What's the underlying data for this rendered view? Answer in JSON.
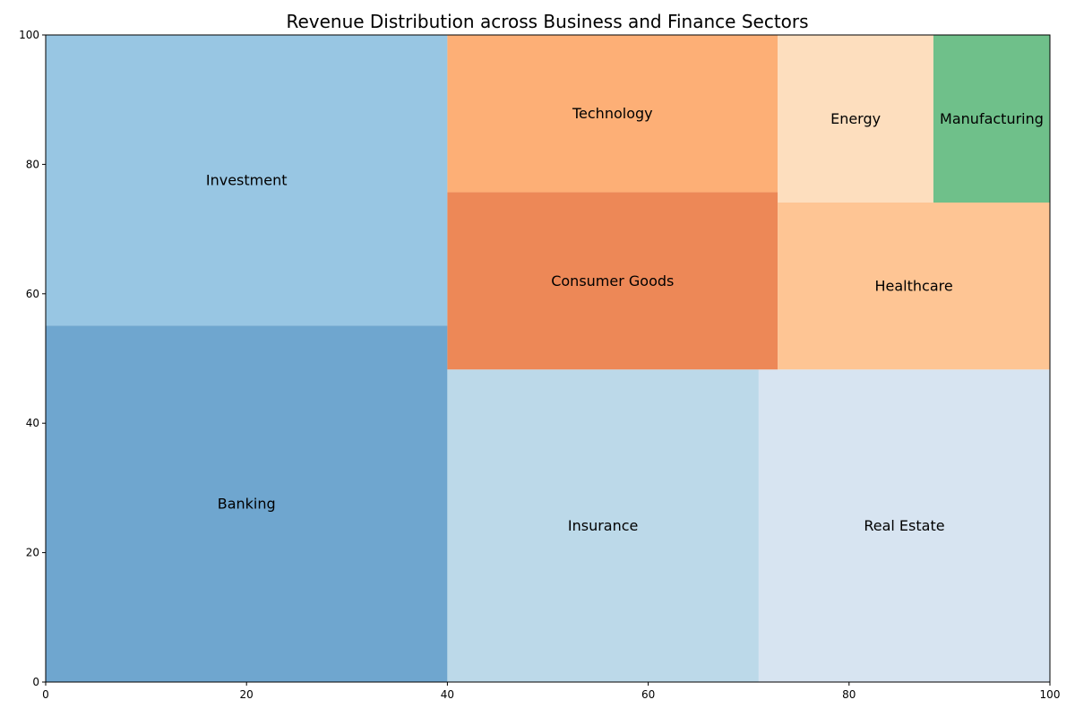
{
  "chart_data": {
    "type": "treemap",
    "title": "Revenue Distribution across Business and Finance Sectors",
    "xlabel": "",
    "ylabel": "",
    "xlim": [
      0,
      100
    ],
    "ylim": [
      0,
      100
    ],
    "x_ticks": [
      0,
      20,
      40,
      60,
      80,
      100
    ],
    "y_ticks": [
      0,
      20,
      40,
      60,
      80,
      100
    ],
    "grid": false,
    "tiles": [
      {
        "label": "Banking",
        "x": 0,
        "y": 0,
        "dx": 40,
        "dy": 55.1,
        "color": "#6fa6cf"
      },
      {
        "label": "Investment",
        "x": 0,
        "y": 55.1,
        "dx": 40,
        "dy": 44.9,
        "color": "#98c6e3"
      },
      {
        "label": "Insurance",
        "x": 40,
        "y": 0,
        "dx": 31.0,
        "dy": 48.3,
        "color": "#bcd9e9"
      },
      {
        "label": "Real Estate",
        "x": 71.0,
        "y": 0,
        "dx": 29.0,
        "dy": 48.3,
        "color": "#d7e4f1"
      },
      {
        "label": "Consumer Goods",
        "x": 40,
        "y": 48.3,
        "dx": 32.9,
        "dy": 27.4,
        "color": "#ed8857"
      },
      {
        "label": "Technology",
        "x": 40,
        "y": 75.7,
        "dx": 32.9,
        "dy": 24.3,
        "color": "#fdaf76"
      },
      {
        "label": "Healthcare",
        "x": 72.9,
        "y": 48.3,
        "dx": 27.1,
        "dy": 25.8,
        "color": "#fec594"
      },
      {
        "label": "Energy",
        "x": 72.9,
        "y": 74.1,
        "dx": 15.5,
        "dy": 25.9,
        "color": "#fddebe"
      },
      {
        "label": "Manufacturing",
        "x": 88.4,
        "y": 74.1,
        "dx": 11.6,
        "dy": 25.9,
        "color": "#6fc08a"
      }
    ]
  }
}
